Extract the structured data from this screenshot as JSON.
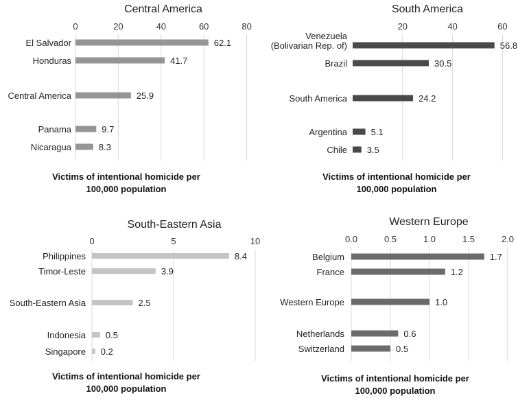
{
  "chart_data": [
    {
      "type": "bar",
      "orientation": "horizontal",
      "title": "Central America",
      "categories": [
        "El Salvador",
        "Honduras",
        "Central America",
        "Panama",
        "Nicaragua"
      ],
      "values": [
        62.1,
        41.7,
        25.9,
        9.7,
        8.3
      ],
      "value_labels": [
        "62.1",
        "41.7",
        "25.9",
        "9.7",
        "8.3"
      ],
      "ticks": [
        0,
        20,
        40,
        60,
        80
      ],
      "tick_labels": [
        "0",
        "20",
        "40",
        "60",
        "80"
      ],
      "xlim": [
        0,
        80
      ],
      "xlabel": [
        "Victims of intentional homicide per",
        "100,000 population"
      ],
      "bar_color": "#959595",
      "grid": true
    },
    {
      "type": "bar",
      "orientation": "horizontal",
      "title": "South America",
      "categories": [
        "Venezuela\n(Bolivarian Rep. of)",
        "Brazil",
        "South America",
        "Argentina",
        "Chile"
      ],
      "values": [
        56.8,
        30.5,
        24.2,
        5.1,
        3.5
      ],
      "value_labels": [
        "56.8",
        "30.5",
        "24.2",
        "5.1",
        "3.5"
      ],
      "ticks": [
        20,
        40,
        60
      ],
      "tick_labels": [
        "20",
        "40",
        "60"
      ],
      "xlim": [
        0,
        60
      ],
      "xlabel": [
        "Victims of intentional homicide per",
        "100,000 population"
      ],
      "bar_color": "#4a4a4a",
      "grid": true
    },
    {
      "type": "bar",
      "orientation": "horizontal",
      "title": "South-Eastern Asia",
      "categories": [
        "Philippines",
        "Timor-Leste",
        "South-Eastern Asia",
        "Indonesia",
        "Singapore"
      ],
      "values": [
        8.4,
        3.9,
        2.5,
        0.5,
        0.2
      ],
      "value_labels": [
        "8.4",
        "3.9",
        "2.5",
        "0.5",
        "0.2"
      ],
      "ticks": [
        0,
        5,
        10
      ],
      "tick_labels": [
        "0",
        "5",
        "10"
      ],
      "xlim": [
        0,
        10
      ],
      "xlabel": [
        "Victims of intentional homicide per",
        "100,000 population"
      ],
      "bar_color": "#c4c4c4",
      "grid": true
    },
    {
      "type": "bar",
      "orientation": "horizontal",
      "title": "Western Europe",
      "categories": [
        "Belgium",
        "France",
        "Western Europe",
        "Netherlands",
        "Switzerland"
      ],
      "values": [
        1.7,
        1.2,
        1.0,
        0.6,
        0.5
      ],
      "value_labels": [
        "1.7",
        "1.2",
        "1.0",
        "0.6",
        "0.5"
      ],
      "ticks": [
        0,
        0.5,
        1.0,
        1.5,
        2.0
      ],
      "tick_labels": [
        "0.0",
        "0.5",
        "1.0",
        "1.5",
        "2.0"
      ],
      "xlim": [
        0,
        2
      ],
      "xlabel": [
        "Victims of intentional homicide per",
        "100,000 population"
      ],
      "bar_color": "#6b6b6b",
      "grid": true
    }
  ]
}
